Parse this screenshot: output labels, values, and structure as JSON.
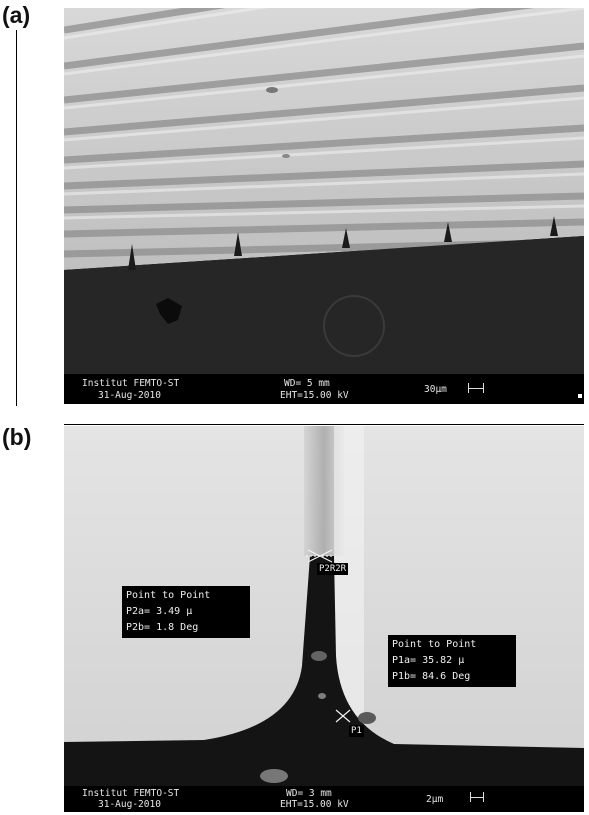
{
  "panels": [
    {
      "label": "(a)",
      "info": {
        "institute": "Institut FEMTO-ST",
        "date": "31-Aug-2010",
        "wd": "WD=   5 mm",
        "eht": "EHT=15.00 kV",
        "scale": "30µm"
      }
    },
    {
      "label": "(b)",
      "info": {
        "institute": "Institut FEMTO-ST",
        "date": "31-Aug-2010",
        "wd": "WD=   3 mm",
        "eht": "EHT=15.00 kV",
        "scale": "2µm"
      },
      "measurements": [
        {
          "title": "Point to Point",
          "line1": "P2a=  3.49 µ",
          "line2": "P2b=  1.8 Deg"
        },
        {
          "title": "Point to Point",
          "line1": "P1a= 35.82 µ",
          "line2": "P1b= 84.6 Deg"
        }
      ],
      "markers": {
        "top": "P2R2R",
        "bottom": "P1"
      }
    }
  ]
}
